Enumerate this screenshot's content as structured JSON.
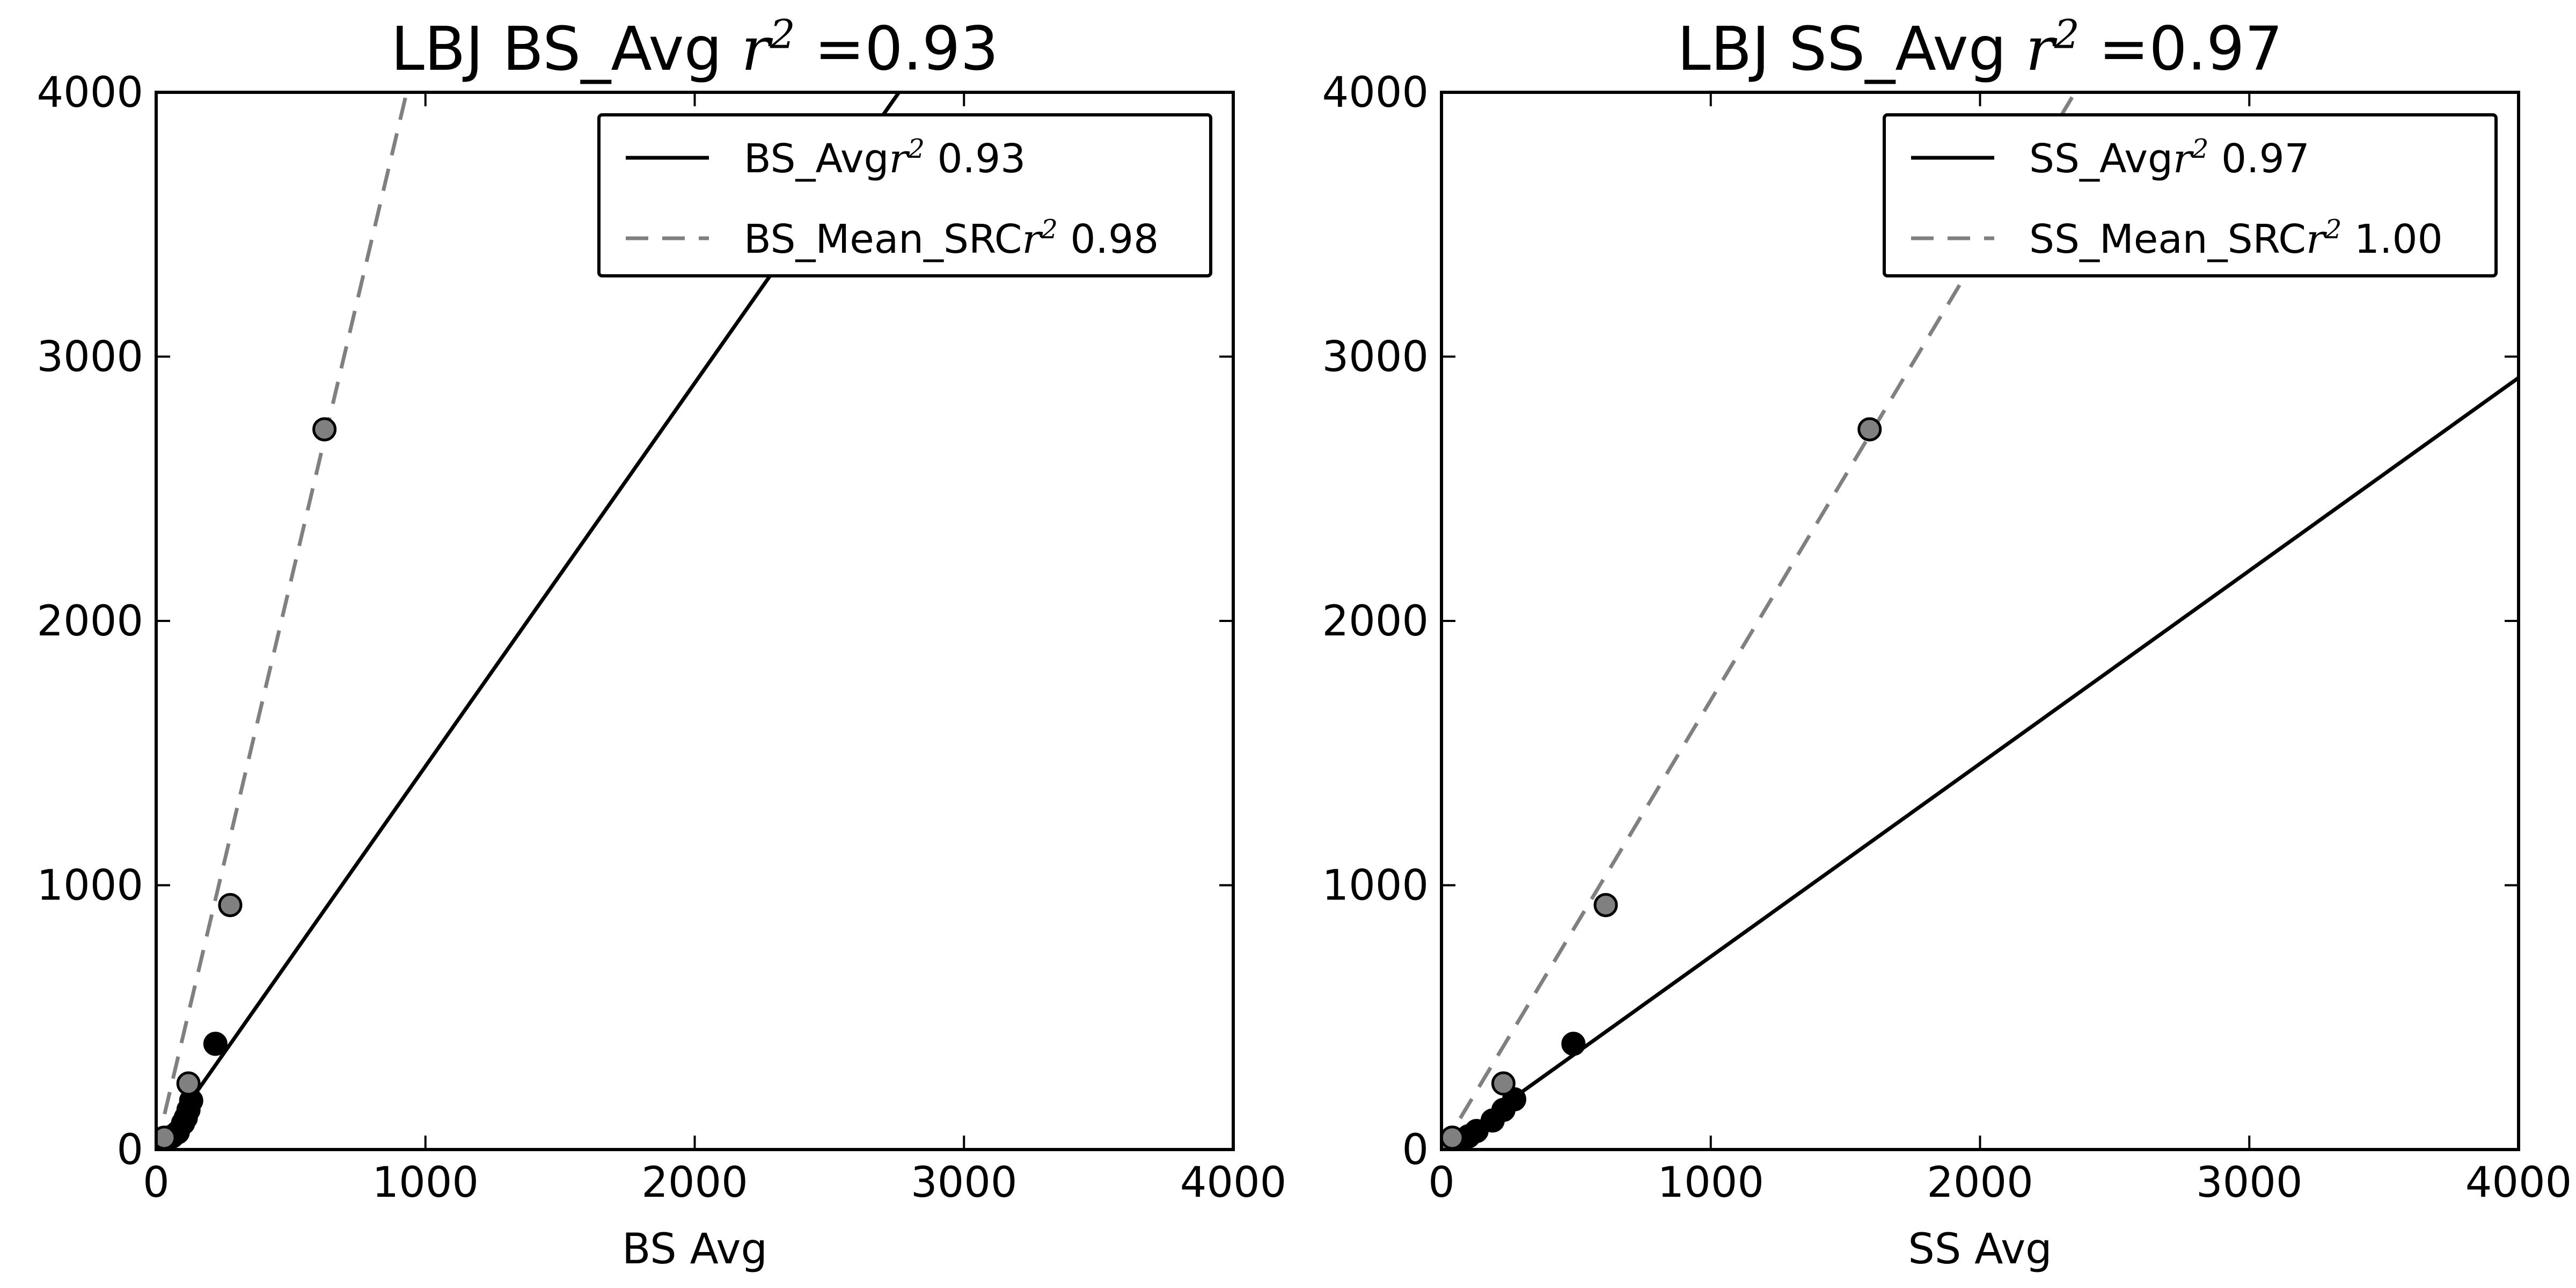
{
  "chart_data": [
    {
      "type": "scatter",
      "title": "LBJ BS_Avg r² =0.93",
      "title_parts": {
        "prefix": "LBJ BS_Avg ",
        "var": "r",
        "sup": "2",
        "suffix": " =0.93"
      },
      "xlabel": "BS Avg",
      "ylabel": "",
      "xlim": [
        0,
        4000
      ],
      "ylim": [
        0,
        4000
      ],
      "xticks": [
        "0",
        "1000",
        "2000",
        "3000",
        "4000"
      ],
      "yticks": [
        "0",
        "1000",
        "2000",
        "3000",
        "4000"
      ],
      "legend_position": "upper right",
      "series": [
        {
          "name": "BS_Avg r² 0.93",
          "label_parts": {
            "prefix": "BS_Avg",
            "var": "r",
            "sup": "2",
            "suffix": " 0.93"
          },
          "color": "#000000",
          "line_style": "solid",
          "line": {
            "slope": 1.45,
            "intercept": 0
          },
          "points": [
            [
              0,
              0
            ],
            [
              20,
              20
            ],
            [
              40,
              35
            ],
            [
              60,
              50
            ],
            [
              80,
              65
            ],
            [
              100,
              100
            ],
            [
              110,
              120
            ],
            [
              120,
              150
            ],
            [
              130,
              185
            ],
            [
              220,
              400
            ]
          ]
        },
        {
          "name": "BS_Mean_SRC r² 0.98",
          "label_parts": {
            "prefix": "BS_Mean_SRC",
            "var": "r",
            "sup": "2",
            "suffix": " 0.98"
          },
          "color": "#808080",
          "line_style": "dashed",
          "line": {
            "slope": 4.3,
            "intercept": 0
          },
          "points": [
            [
              0,
              0
            ],
            [
              15,
              25
            ],
            [
              30,
              45
            ],
            [
              120,
              250
            ],
            [
              275,
              925
            ],
            [
              625,
              2725
            ]
          ]
        }
      ]
    },
    {
      "type": "scatter",
      "title": "LBJ SS_Avg r² =0.97",
      "title_parts": {
        "prefix": "LBJ SS_Avg ",
        "var": "r",
        "sup": "2",
        "suffix": " =0.97"
      },
      "xlabel": "SS Avg",
      "ylabel": "",
      "xlim": [
        0,
        4000
      ],
      "ylim": [
        0,
        4000
      ],
      "xticks": [
        "0",
        "1000",
        "2000",
        "3000",
        "4000"
      ],
      "yticks": [
        "0",
        "1000",
        "2000",
        "3000",
        "4000"
      ],
      "legend_position": "upper right",
      "series": [
        {
          "name": "SS_Avg r² 0.97",
          "label_parts": {
            "prefix": "SS_Avg",
            "var": "r",
            "sup": "2",
            "suffix": " 0.97"
          },
          "color": "#000000",
          "line_style": "solid",
          "line": {
            "slope": 0.73,
            "intercept": 0
          },
          "points": [
            [
              0,
              0
            ],
            [
              30,
              20
            ],
            [
              60,
              35
            ],
            [
              100,
              50
            ],
            [
              130,
              70
            ],
            [
              190,
              110
            ],
            [
              230,
              150
            ],
            [
              270,
              190
            ],
            [
              490,
              400
            ]
          ]
        },
        {
          "name": "SS_Mean_SRC r² 1.00",
          "label_parts": {
            "prefix": "SS_Mean_SRC",
            "var": "r",
            "sup": "2",
            "suffix": " 1.00"
          },
          "color": "#808080",
          "line_style": "dashed",
          "line": {
            "slope": 1.7,
            "intercept": 0
          },
          "points": [
            [
              0,
              0
            ],
            [
              20,
              25
            ],
            [
              40,
              45
            ],
            [
              230,
              250
            ],
            [
              610,
              925
            ],
            [
              1590,
              2725
            ]
          ]
        }
      ]
    }
  ]
}
